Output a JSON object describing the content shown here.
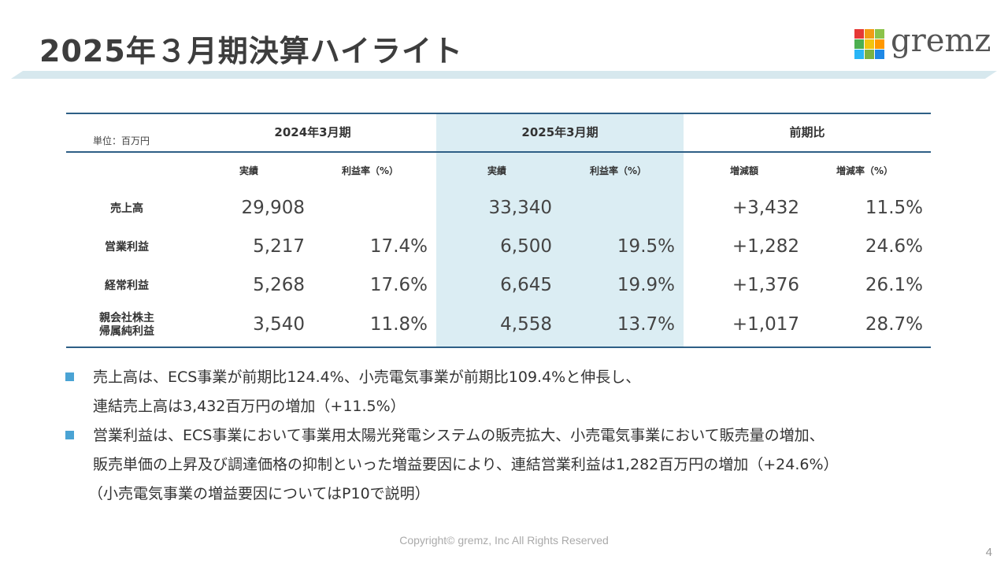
{
  "title": "2025年３月期決算ハイライト",
  "logo": {
    "text": "gremz",
    "colors": [
      "#e53935",
      "#f39c12",
      "#8bc34a",
      "#4caf50",
      "#f1c40f",
      "#ff9800",
      "#29b6f6",
      "#7cb342",
      "#1e88e5"
    ]
  },
  "table": {
    "unit": "単位：百万円",
    "groups": [
      "2024年3月期",
      "2025年3月期",
      "前期比"
    ],
    "subheaders": [
      "実績",
      "利益率（%）",
      "実績",
      "利益率（%）",
      "増減額",
      "増減率（%）"
    ],
    "rows": [
      {
        "label": "売上高",
        "values": [
          "29,908",
          "",
          "33,340",
          "",
          "+3,432",
          "11.5%"
        ]
      },
      {
        "label": "営業利益",
        "values": [
          "5,217",
          "17.4%",
          "6,500",
          "19.5%",
          "+1,282",
          "24.6%"
        ]
      },
      {
        "label": "経常利益",
        "values": [
          "5,268",
          "17.6%",
          "6,645",
          "19.9%",
          "+1,376",
          "26.1%"
        ]
      },
      {
        "label": "親会社株主",
        "label2": "帰属純利益",
        "values": [
          "3,540",
          "11.8%",
          "4,558",
          "13.7%",
          "+1,017",
          "28.7%"
        ]
      }
    ]
  },
  "bullets": [
    {
      "line1": "売上高は、ECS事業が前期比124.4%、小売電気事業が前期比109.4%と伸長し、",
      "line2": "連結売上高は3,432百万円の増加（+11.5%）"
    },
    {
      "line1": "営業利益は、ECS事業において事業用太陽光発電システムの販売拡大、小売電気事業において販売量の増加、",
      "line2": "販売単価の上昇及び調達価格の抑制といった増益要因により、連結営業利益は1,282百万円の増加（+24.6%）"
    }
  ],
  "note": "（小売電気事業の増益要因についてはP10で説明）",
  "footer": "Copyright© gremz, Inc All Rights Reserved",
  "page_number": "4",
  "colors": {
    "accent_bar": "#d7e8ee",
    "highlight_column": "#dbedf3",
    "table_rule": "#2e5f86",
    "bullet": "#4aa3d4"
  }
}
